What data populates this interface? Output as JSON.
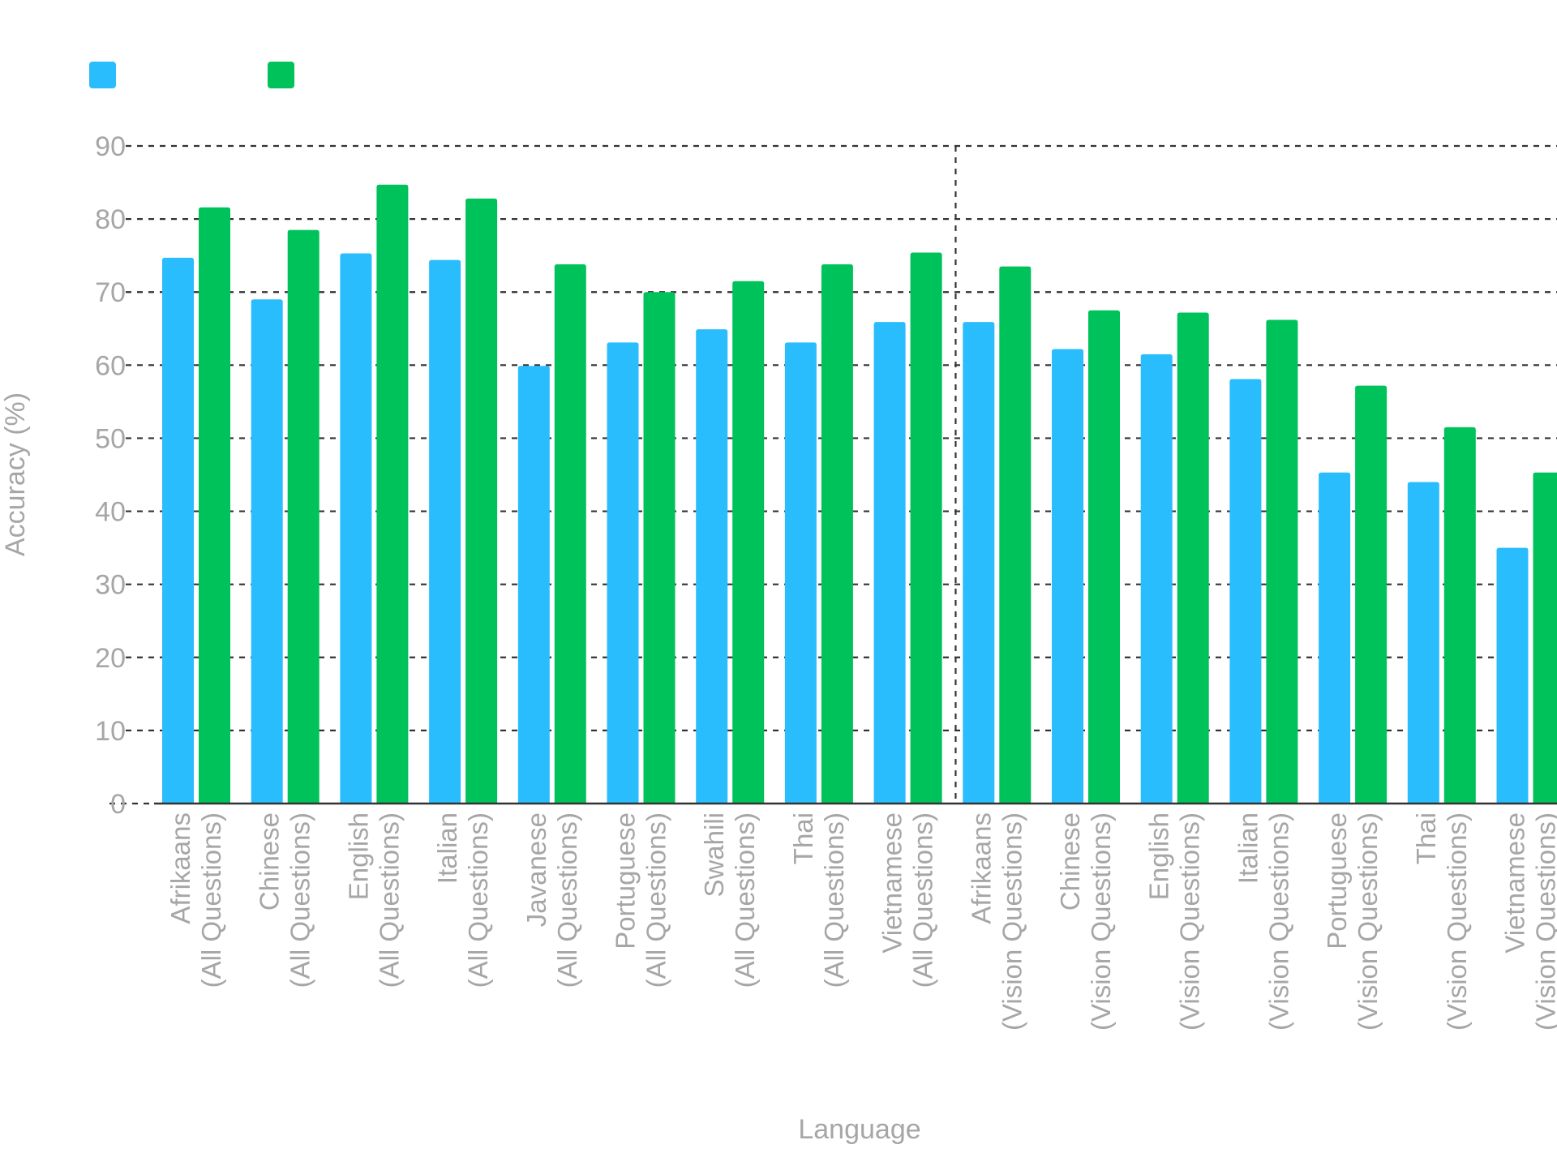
{
  "chart_data": {
    "type": "bar",
    "ylabel": "Accuracy (%)",
    "xlabel": "Language",
    "ylim": [
      0,
      90
    ],
    "yticks": [
      0,
      10,
      20,
      30,
      40,
      50,
      60,
      70,
      80,
      90
    ],
    "grid": true,
    "legend_position": "top-left",
    "categories": [
      [
        "Afrikaans",
        "(All Questions)"
      ],
      [
        "Chinese",
        "(All Questions)"
      ],
      [
        "English",
        "(All Questions)"
      ],
      [
        "Italian",
        "(All Questions)"
      ],
      [
        "Javanese",
        "(All Questions)"
      ],
      [
        "Portuguese",
        "(All Questions)"
      ],
      [
        "Swahili",
        "(All Questions)"
      ],
      [
        "Thai",
        "(All Questions)"
      ],
      [
        "Vietnamese",
        "(All Questions)"
      ],
      [
        "Afrikaans",
        "(Vision Questions)"
      ],
      [
        "Chinese",
        "(Vision Questions)"
      ],
      [
        "English",
        "(Vision Questions)"
      ],
      [
        "Italian",
        "(Vision Questions)"
      ],
      [
        "Portuguese",
        "(Vision Questions)"
      ],
      [
        "Thai",
        "(Vision Questions)"
      ],
      [
        "Vietnamese",
        "(Vision Questions)"
      ]
    ],
    "series": [
      {
        "color": "#29bdfd",
        "values": [
          74.7,
          69.0,
          75.3,
          74.4,
          59.9,
          63.1,
          64.9,
          63.1,
          65.9,
          65.9,
          62.2,
          61.5,
          58.1,
          45.3,
          44.0,
          35.0
        ]
      },
      {
        "color": "#00c25a",
        "values": [
          81.6,
          78.5,
          84.7,
          82.8,
          73.8,
          70.0,
          71.5,
          73.8,
          75.4,
          73.5,
          67.5,
          67.2,
          66.2,
          57.2,
          51.5,
          45.3
        ]
      }
    ]
  }
}
